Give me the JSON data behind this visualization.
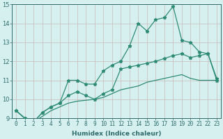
{
  "xlabel": "Humidex (Indice chaleur)",
  "x_values": [
    0,
    1,
    2,
    3,
    4,
    5,
    6,
    7,
    8,
    9,
    10,
    11,
    12,
    13,
    14,
    15,
    16,
    17,
    18,
    19,
    20,
    21,
    22,
    23
  ],
  "line1": [
    9.4,
    9.0,
    8.8,
    9.3,
    9.6,
    9.8,
    11.0,
    11.0,
    10.8,
    10.8,
    11.5,
    11.8,
    12.0,
    12.8,
    14.0,
    13.6,
    14.2,
    14.3,
    14.9,
    13.1,
    13.0,
    12.5,
    12.4,
    11.0
  ],
  "line2": [
    9.4,
    9.0,
    8.8,
    9.3,
    9.6,
    9.8,
    10.2,
    10.4,
    10.2,
    10.0,
    10.3,
    10.5,
    11.6,
    11.7,
    11.8,
    11.9,
    12.0,
    12.15,
    12.3,
    12.4,
    12.2,
    12.3,
    12.4,
    11.1
  ],
  "line3": [
    9.4,
    9.0,
    8.8,
    9.1,
    9.4,
    9.6,
    9.8,
    9.9,
    9.95,
    10.0,
    10.1,
    10.3,
    10.5,
    10.6,
    10.7,
    10.9,
    11.0,
    11.1,
    11.2,
    11.3,
    11.1,
    11.0,
    11.0,
    11.0
  ],
  "line_color": "#2e8b73",
  "bg_color": "#d6f0f0",
  "grid_color": "#c8b8b8",
  "ylim": [
    9,
    15
  ],
  "xlim": [
    -0.5,
    23.5
  ],
  "yticks": [
    9,
    10,
    11,
    12,
    13,
    14,
    15
  ],
  "xticks": [
    0,
    1,
    2,
    3,
    4,
    5,
    6,
    7,
    8,
    9,
    10,
    11,
    12,
    13,
    14,
    15,
    16,
    17,
    18,
    19,
    20,
    21,
    22,
    23
  ],
  "tick_color": "#2e6b6b",
  "label_fontsize": 5.5,
  "ylabel_fontsize": 6.5
}
